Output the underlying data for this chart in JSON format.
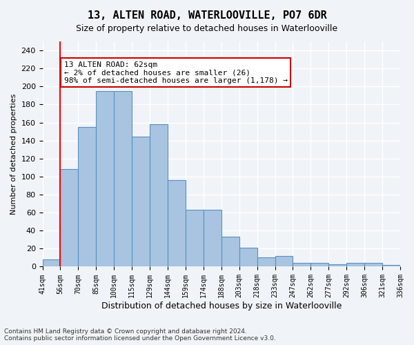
{
  "title": "13, ALTEN ROAD, WATERLOOVILLE, PO7 6DR",
  "subtitle": "Size of property relative to detached houses in Waterlooville",
  "xlabel": "Distribution of detached houses by size in Waterlooville",
  "ylabel": "Number of detached properties",
  "bar_values": [
    8,
    108,
    155,
    195,
    195,
    144,
    158,
    96,
    63,
    63,
    33,
    21,
    10,
    12,
    4,
    4,
    3,
    4,
    4,
    2
  ],
  "bar_labels": [
    "41sqm",
    "56sqm",
    "70sqm",
    "85sqm",
    "100sqm",
    "115sqm",
    "129sqm",
    "144sqm",
    "159sqm",
    "174sqm",
    "188sqm",
    "203sqm",
    "218sqm",
    "233sqm",
    "247sqm",
    "262sqm",
    "277sqm",
    "292sqm",
    "306sqm",
    "321sqm",
    "336sqm"
  ],
  "bar_color": "#a8c4e0",
  "bar_edge_color": "#5a8fc0",
  "ylim": [
    0,
    250
  ],
  "yticks": [
    0,
    20,
    40,
    60,
    80,
    100,
    120,
    140,
    160,
    180,
    200,
    220,
    240
  ],
  "property_line_x": 1,
  "annotation_text": "13 ALTEN ROAD: 62sqm\n← 2% of detached houses are smaller (26)\n98% of semi-detached houses are larger (1,178) →",
  "annotation_box_color": "#ffffff",
  "annotation_box_edge_color": "#cc0000",
  "footer_line1": "Contains HM Land Registry data © Crown copyright and database right 2024.",
  "footer_line2": "Contains public sector information licensed under the Open Government Licence v3.0.",
  "bg_color": "#f0f4f8",
  "grid_color": "#ffffff"
}
